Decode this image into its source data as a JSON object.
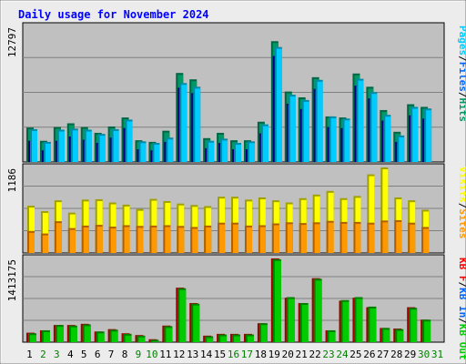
{
  "title": "Daily usage for November 2024",
  "colors": {
    "frame": "#ececec",
    "panel": "#c0c0c0",
    "grid": "#808080",
    "title": "#0000ff",
    "hits": "#009966",
    "files": "#0066ff",
    "pages": "#00ccff",
    "visits": "#ffff00",
    "sites": "#ff9900",
    "kbin": "#00cc00",
    "kbout": "#ff0000",
    "weekend_day": "#008000",
    "weekday_day": "#000000"
  },
  "chart_data": [
    {
      "type": "bar",
      "panel": "top",
      "y_max_label": "12797",
      "y_max": 12797,
      "categories": [
        "1",
        "2",
        "3",
        "4",
        "5",
        "6",
        "7",
        "8",
        "9",
        "10",
        "11",
        "12",
        "13",
        "14",
        "15",
        "16",
        "17",
        "18",
        "19",
        "20",
        "21",
        "22",
        "23",
        "24",
        "25",
        "26",
        "27",
        "28",
        "29",
        "30",
        "31"
      ],
      "weekend_days": [
        "2",
        "3",
        "9",
        "10",
        "16",
        "17",
        "23",
        "24",
        "30",
        "31"
      ],
      "legend": [
        {
          "label": "Pages",
          "color": "#00ccff"
        },
        {
          "label": "/",
          "color": "#000000"
        },
        {
          "label": "Files",
          "color": "#0066ff"
        },
        {
          "label": "/",
          "color": "#000000"
        },
        {
          "label": "Hits",
          "color": "#009966"
        }
      ],
      "series": [
        {
          "name": "Hits",
          "values": [
            3250,
            2000,
            3300,
            3650,
            3300,
            2750,
            3350,
            4200,
            2050,
            1900,
            2950,
            8400,
            7800,
            2250,
            2750,
            2050,
            2050,
            3800,
            11400,
            6650,
            6100,
            8000,
            4300,
            4200,
            8350,
            7100,
            4900,
            2850,
            5450,
            5200,
            0
          ]
        },
        {
          "name": "Files",
          "values": [
            2000,
            1100,
            2000,
            2400,
            2100,
            1800,
            2300,
            3200,
            1200,
            1100,
            1900,
            7000,
            6500,
            1300,
            1800,
            1200,
            1200,
            2700,
            10000,
            5500,
            5000,
            6900,
            3300,
            3200,
            7200,
            6000,
            3900,
            1900,
            4400,
            4100,
            0
          ]
        },
        {
          "name": "Pages",
          "values": [
            3100,
            1900,
            3050,
            3150,
            3050,
            2650,
            3100,
            4000,
            1950,
            1800,
            2300,
            7450,
            7100,
            2000,
            2200,
            1800,
            1950,
            3550,
            10850,
            6350,
            5850,
            7750,
            4300,
            4100,
            7850,
            6600,
            4450,
            2500,
            5200,
            5050,
            0
          ]
        }
      ]
    },
    {
      "type": "bar",
      "panel": "middle",
      "y_max_label": "1186",
      "y_max": 1186,
      "legend": [
        {
          "label": "Visits",
          "color": "#ffff00"
        },
        {
          "label": "/",
          "color": "#000000"
        },
        {
          "label": "Sites",
          "color": "#ff9900"
        }
      ],
      "series": [
        {
          "name": "Visits",
          "values": [
            655,
            580,
            730,
            560,
            740,
            745,
            700,
            670,
            610,
            750,
            720,
            685,
            665,
            650,
            780,
            780,
            740,
            770,
            730,
            700,
            760,
            810,
            860,
            760,
            790,
            1090,
            1186,
            770,
            730,
            600,
            0
          ]
        },
        {
          "name": "Sites",
          "values": [
            305,
            270,
            440,
            345,
            380,
            390,
            365,
            385,
            375,
            380,
            385,
            375,
            360,
            380,
            420,
            420,
            380,
            385,
            410,
            425,
            415,
            425,
            445,
            430,
            430,
            420,
            450,
            455,
            420,
            360,
            0
          ]
        }
      ]
    },
    {
      "type": "bar",
      "panel": "bottom",
      "y_max_label": "1413175",
      "y_max": 1413175,
      "legend": [
        {
          "label": "KB F",
          "color": "#ff0000"
        },
        {
          "label": "/",
          "color": "#000000"
        },
        {
          "label": "KB In",
          "color": "#0066ff"
        },
        {
          "label": "/",
          "color": "#000000"
        },
        {
          "label": "KB Out",
          "color": "#00cc00"
        }
      ],
      "series": [
        {
          "name": "KB F",
          "values": [
            160000,
            200000,
            290000,
            290000,
            310000,
            180000,
            220000,
            150000,
            120000,
            50000,
            280000,
            920000,
            660000,
            110000,
            140000,
            140000,
            140000,
            320000,
            1413175,
            750000,
            660000,
            1080000,
            200000,
            700000,
            750000,
            590000,
            240000,
            230000,
            590000,
            380000,
            0
          ]
        },
        {
          "name": "KB Out",
          "values": [
            150000,
            200000,
            290000,
            280000,
            300000,
            180000,
            210000,
            140000,
            110000,
            40000,
            270000,
            910000,
            650000,
            100000,
            130000,
            130000,
            130000,
            320000,
            1400000,
            760000,
            660000,
            1070000,
            200000,
            710000,
            760000,
            600000,
            240000,
            220000,
            580000,
            380000,
            0
          ]
        }
      ]
    }
  ]
}
